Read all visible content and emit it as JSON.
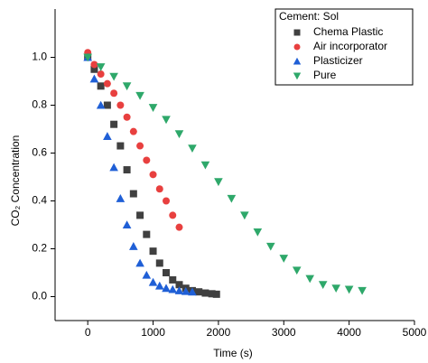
{
  "chart_data": {
    "type": "scatter",
    "xlabel": "Time (s)",
    "ylabel": "CO₂ Concentration",
    "legend_title": "Cement: Sol",
    "legend": "upper right",
    "xlim": [
      -500,
      5000
    ],
    "xticks": [
      0,
      1000,
      2000,
      3000,
      4000,
      5000
    ],
    "ylim": [
      -0.1,
      1.1
    ],
    "yticks": [
      {
        "value": 0,
        "label": "0.0"
      },
      0.2,
      0.4,
      0.6,
      0.8,
      {
        "value": 1,
        "label": "1.0"
      }
    ],
    "series": [
      {
        "name": "Chema Plastic",
        "color": "#404040",
        "marker": "square",
        "x": [
          0,
          100,
          200,
          300,
          400,
          500,
          600,
          700,
          800,
          900,
          1000,
          1100,
          1200,
          1300,
          1400,
          1500,
          1600,
          1700,
          1800,
          1900,
          1970
        ],
        "values": [
          1.0,
          0.95,
          0.88,
          0.8,
          0.72,
          0.63,
          0.53,
          0.43,
          0.34,
          0.26,
          0.19,
          0.14,
          0.1,
          0.07,
          0.05,
          0.035,
          0.025,
          0.02,
          0.015,
          0.012,
          0.01
        ]
      },
      {
        "name": "Air incorporator",
        "color": "#e8403f",
        "marker": "circle",
        "x": [
          0,
          100,
          200,
          300,
          400,
          500,
          600,
          700,
          800,
          900,
          1000,
          1100,
          1200,
          1300,
          1400
        ],
        "values": [
          1.02,
          0.97,
          0.93,
          0.89,
          0.85,
          0.8,
          0.75,
          0.69,
          0.63,
          0.57,
          0.51,
          0.45,
          0.4,
          0.34,
          0.29
        ]
      },
      {
        "name": "Plasticizer",
        "color": "#1f5fd6",
        "marker": "triangle-up",
        "x": [
          0,
          100,
          200,
          300,
          400,
          500,
          600,
          700,
          800,
          900,
          1000,
          1100,
          1200,
          1300,
          1400,
          1500,
          1600
        ],
        "values": [
          1.0,
          0.91,
          0.8,
          0.67,
          0.54,
          0.41,
          0.3,
          0.21,
          0.14,
          0.09,
          0.06,
          0.045,
          0.035,
          0.03,
          0.025,
          0.022,
          0.02
        ]
      },
      {
        "name": "Pure",
        "color": "#2ea86a",
        "marker": "triangle-down",
        "x": [
          0,
          200,
          400,
          600,
          800,
          1000,
          1200,
          1400,
          1600,
          1800,
          2000,
          2200,
          2400,
          2600,
          2800,
          3000,
          3200,
          3400,
          3600,
          3800,
          4000,
          4200
        ],
        "values": [
          1.0,
          0.96,
          0.92,
          0.88,
          0.84,
          0.79,
          0.74,
          0.68,
          0.62,
          0.55,
          0.48,
          0.41,
          0.34,
          0.27,
          0.21,
          0.16,
          0.11,
          0.075,
          0.05,
          0.035,
          0.03,
          0.025
        ]
      }
    ]
  }
}
